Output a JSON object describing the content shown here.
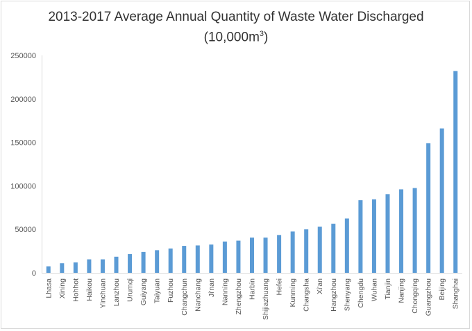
{
  "chart_data": {
    "type": "bar",
    "title": "2013-2017 Average Annual Quantity of Waste Water Discharged",
    "subtitle": "(10,000m",
    "subtitle_sup": "3",
    "subtitle_close": ")",
    "categories": [
      "Lhasa",
      "Xining",
      "Hohhot",
      "Haikou",
      "Yinchuan",
      "Lanzhou",
      "Urumqi",
      "Guiyang",
      "Taiyuan",
      "Fuzhou",
      "Changchun",
      "Nanchang",
      "Ji'nan",
      "Nanning",
      "Zhengzhou",
      "Harbin",
      "Shijiazhuang",
      "Hefei",
      "Kunming",
      "Changsha",
      "Xi'an",
      "Hangzhou",
      "Shenyang",
      "Chengdu",
      "Wuhan",
      "Tianjin",
      "Nanjing",
      "Chongqing",
      "Guangzhou",
      "Beijing",
      "Shanghai"
    ],
    "values": [
      7500,
      11000,
      12000,
      15500,
      15500,
      18500,
      21500,
      24000,
      26000,
      28000,
      31000,
      31500,
      32500,
      36000,
      37000,
      40500,
      40500,
      43500,
      47500,
      50000,
      53000,
      56500,
      62500,
      83500,
      84500,
      90500,
      96000,
      97500,
      149000,
      166000,
      232000
    ],
    "ylim": [
      0,
      250000
    ],
    "yticks": [
      "0",
      "50000",
      "100000",
      "150000",
      "200000",
      "250000"
    ],
    "bar_color": "#5b9bd5",
    "grid": false,
    "legend": "none"
  }
}
